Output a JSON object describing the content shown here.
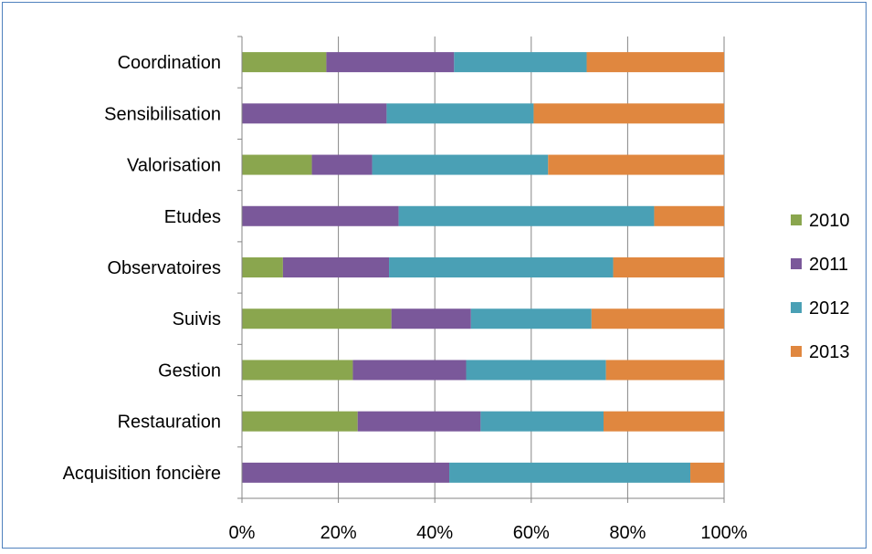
{
  "chart_data": {
    "type": "bar",
    "orientation": "horizontal",
    "stacked": "percent",
    "title": "",
    "xlabel": "",
    "ylabel": "",
    "xlim": [
      0,
      100
    ],
    "x_ticks": [
      "0%",
      "20%",
      "40%",
      "60%",
      "80%",
      "100%"
    ],
    "grid": "vertical",
    "legend_position": "right",
    "categories": [
      "Coordination",
      "Sensibilisation",
      "Valorisation",
      "Etudes",
      "Observatoires",
      "Suivis",
      "Gestion",
      "Restauration",
      "Acquisition foncière"
    ],
    "series": [
      {
        "name": "2010",
        "color": "#8aa64e",
        "values": [
          17.5,
          0,
          14.5,
          0,
          8.5,
          31,
          23,
          24,
          0
        ]
      },
      {
        "name": "2011",
        "color": "#7a589a",
        "values": [
          26.5,
          30,
          12.5,
          32.5,
          22,
          16.5,
          23.5,
          25.5,
          43
        ]
      },
      {
        "name": "2012",
        "color": "#4aa0b5",
        "values": [
          27.5,
          30.5,
          36.5,
          53,
          46.5,
          25,
          29,
          25.5,
          50
        ]
      },
      {
        "name": "2013",
        "color": "#e0873f",
        "values": [
          28.5,
          39.5,
          36.5,
          14.5,
          23,
          27.5,
          24.5,
          25,
          7
        ]
      }
    ]
  }
}
